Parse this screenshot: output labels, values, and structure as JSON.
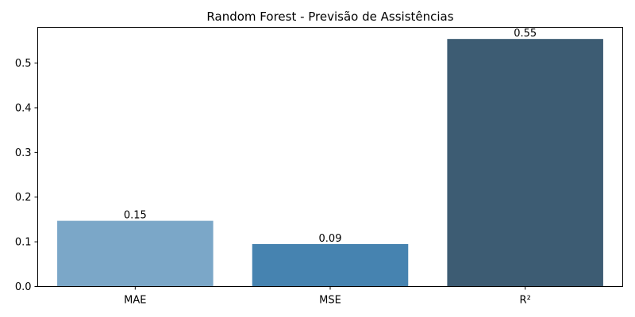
{
  "chart_data": {
    "type": "bar",
    "title": "Random Forest - Previsão de Assistências",
    "xlabel": "",
    "ylabel": "",
    "categories": [
      "MAE",
      "MSE",
      "R²"
    ],
    "values": [
      0.147,
      0.095,
      0.554
    ],
    "data_labels": [
      "0.15",
      "0.09",
      "0.55"
    ],
    "colors": [
      "#7ba7c8",
      "#4683b0",
      "#3d5c73"
    ],
    "ylim": [
      0,
      0.58
    ],
    "yticks": [
      0.0,
      0.1,
      0.2,
      0.3,
      0.4,
      0.5
    ],
    "ytick_labels": [
      "0.0",
      "0.1",
      "0.2",
      "0.3",
      "0.4",
      "0.5"
    ],
    "grid": false,
    "legend": "none"
  }
}
